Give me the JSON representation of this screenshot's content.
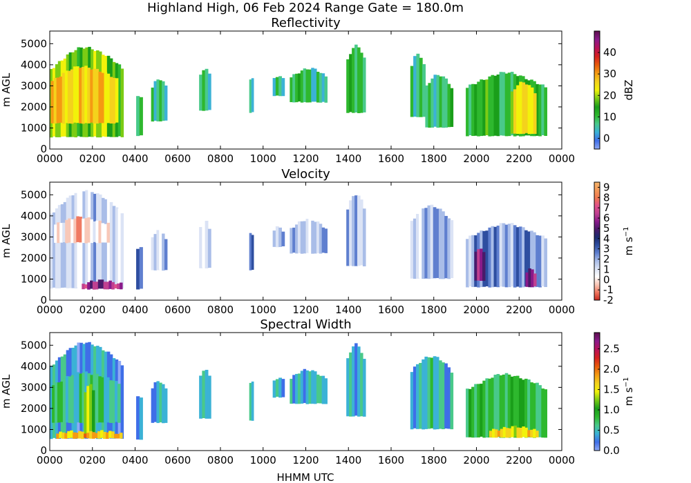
{
  "figure": {
    "title": "Highland High, 06 Feb 2024 Range Gate = 180.0m",
    "xlabel": "HHMM UTC",
    "xticks": [
      "0000",
      "0200",
      "0400",
      "0600",
      "0800",
      "1000",
      "1200",
      "1400",
      "1600",
      "1800",
      "2000",
      "2200",
      "0000"
    ]
  },
  "chart_data": [
    {
      "type": "heatmap",
      "title": "Reflectivity",
      "ylabel": "m AGL",
      "xlim_hours": [
        0,
        24
      ],
      "ylim": [
        0,
        5600
      ],
      "yticks": [
        0,
        1000,
        2000,
        3000,
        4000,
        5000
      ],
      "colorbar": {
        "label": "dBZ",
        "range": [
          -5,
          50
        ],
        "ticks": [
          "0",
          "10",
          "20",
          "30",
          "40"
        ],
        "tick_values": [
          0,
          10,
          20,
          30,
          40
        ],
        "colors": [
          "#8fa9f5",
          "#3f6ee8",
          "#3bb2d6",
          "#49c98a",
          "#2eb82e",
          "#1a9e1a",
          "#7ccc14",
          "#f2f20a",
          "#f4d21c",
          "#f59a12",
          "#e85a0c",
          "#d62020",
          "#b8125a",
          "#8a1a8a",
          "#5c0f4d"
        ]
      },
      "echoes": [
        {
          "x0": 0.0,
          "x1": 3.45,
          "y0": 550,
          "y1": 4800,
          "level": 0.42
        },
        {
          "x0": 0.05,
          "x1": 3.2,
          "y0": 1200,
          "y1": 3900,
          "level": 0.58
        },
        {
          "x0": 4.05,
          "x1": 4.35,
          "y0": 600,
          "y1": 2700,
          "level": 0.2
        },
        {
          "x0": 4.75,
          "x1": 5.5,
          "y0": 1300,
          "y1": 3300,
          "level": 0.25
        },
        {
          "x0": 7.0,
          "x1": 7.55,
          "y0": 1800,
          "y1": 3800,
          "level": 0.27
        },
        {
          "x0": 9.35,
          "x1": 9.55,
          "y0": 1700,
          "y1": 3400,
          "level": 0.25
        },
        {
          "x0": 10.45,
          "x1": 11.0,
          "y0": 2500,
          "y1": 3500,
          "level": 0.2
        },
        {
          "x0": 11.25,
          "x1": 13.0,
          "y0": 2200,
          "y1": 3800,
          "level": 0.24
        },
        {
          "x0": 13.9,
          "x1": 14.8,
          "y0": 1700,
          "y1": 4900,
          "level": 0.28
        },
        {
          "x0": 16.9,
          "x1": 17.6,
          "y0": 1500,
          "y1": 4500,
          "level": 0.24
        },
        {
          "x0": 17.6,
          "x1": 18.9,
          "y0": 1000,
          "y1": 3500,
          "level": 0.24
        },
        {
          "x0": 19.5,
          "x1": 23.3,
          "y0": 600,
          "y1": 3600,
          "level": 0.3
        },
        {
          "x0": 21.6,
          "x1": 22.8,
          "y0": 700,
          "y1": 3200,
          "level": 0.5
        }
      ]
    },
    {
      "type": "heatmap",
      "title": "Velocity",
      "ylabel": "m AGL",
      "xlim_hours": [
        0,
        24
      ],
      "ylim": [
        0,
        5600
      ],
      "yticks": [
        0,
        1000,
        2000,
        3000,
        4000,
        5000
      ],
      "colorbar": {
        "label": "m s",
        "label_sup": "−1",
        "range": [
          -2,
          9.5
        ],
        "ticks": [
          "-2",
          "-1",
          "0",
          "1",
          "2",
          "3",
          "4",
          "5",
          "6",
          "7",
          "8",
          "9"
        ],
        "tick_values": [
          -2,
          -1,
          0,
          1,
          2,
          3,
          4,
          5,
          6,
          7,
          8,
          9
        ],
        "colors": [
          "#c82820",
          "#f07a62",
          "#f8c8b8",
          "#ffffff",
          "#dbe3f5",
          "#a9bde8",
          "#5f7fcf",
          "#2e4ea0",
          "#1a2a6e",
          "#4a1a6a",
          "#8a1a8a",
          "#c04090",
          "#e0508a",
          "#f07850",
          "#f49a5a",
          "#f5b46a"
        ]
      },
      "echoes": [
        {
          "x0": 0.0,
          "x1": 3.45,
          "y0": 550,
          "y1": 5200,
          "level": 0.28
        },
        {
          "x0": 0.2,
          "x1": 2.8,
          "y0": 2700,
          "y1": 3900,
          "level": 0.16
        },
        {
          "x0": 1.5,
          "x1": 3.4,
          "y0": 500,
          "y1": 900,
          "level": 0.7
        },
        {
          "x0": 4.05,
          "x1": 4.35,
          "y0": 500,
          "y1": 2600,
          "level": 0.45
        },
        {
          "x0": 4.75,
          "x1": 5.5,
          "y0": 1400,
          "y1": 3300,
          "level": 0.32
        },
        {
          "x0": 7.0,
          "x1": 7.55,
          "y0": 1500,
          "y1": 3800,
          "level": 0.3
        },
        {
          "x0": 9.35,
          "x1": 9.55,
          "y0": 1400,
          "y1": 3300,
          "level": 0.4
        },
        {
          "x0": 10.45,
          "x1": 11.0,
          "y0": 2500,
          "y1": 3500,
          "level": 0.3
        },
        {
          "x0": 11.25,
          "x1": 13.0,
          "y0": 2200,
          "y1": 3800,
          "level": 0.32
        },
        {
          "x0": 13.9,
          "x1": 14.8,
          "y0": 1600,
          "y1": 5000,
          "level": 0.34
        },
        {
          "x0": 16.9,
          "x1": 18.9,
          "y0": 1000,
          "y1": 4500,
          "level": 0.33
        },
        {
          "x0": 19.5,
          "x1": 23.3,
          "y0": 600,
          "y1": 3600,
          "level": 0.38
        },
        {
          "x0": 19.9,
          "x1": 20.4,
          "y0": 900,
          "y1": 2500,
          "level": 0.65
        },
        {
          "x0": 22.3,
          "x1": 22.8,
          "y0": 600,
          "y1": 1500,
          "level": 0.62
        }
      ]
    },
    {
      "type": "heatmap",
      "title": "Spectral Width",
      "ylabel": "m AGL",
      "xlim_hours": [
        0,
        24
      ],
      "ylim": [
        0,
        5600
      ],
      "yticks": [
        0,
        1000,
        2000,
        3000,
        4000,
        5000
      ],
      "colorbar": {
        "label": "m s",
        "label_sup": "−1",
        "range": [
          0,
          2.9
        ],
        "ticks": [
          "0.0",
          "0.5",
          "1.0",
          "1.5",
          "2.0",
          "2.5"
        ],
        "tick_values": [
          0,
          0.5,
          1.0,
          1.5,
          2.0,
          2.5
        ],
        "colors": [
          "#8fa9f5",
          "#3f6ee8",
          "#3bb2d6",
          "#49c98a",
          "#2eb82e",
          "#1a9e1a",
          "#7ccc14",
          "#f2f20a",
          "#f4d21c",
          "#f59a12",
          "#e85a0c",
          "#d62020",
          "#b8125a",
          "#8a1a8a",
          "#5c0f4d"
        ]
      },
      "echoes": [
        {
          "x0": 0.0,
          "x1": 3.45,
          "y0": 550,
          "y1": 5100,
          "level": 0.12
        },
        {
          "x0": 0.1,
          "x1": 3.3,
          "y0": 1300,
          "y1": 3700,
          "level": 0.22
        },
        {
          "x0": 1.6,
          "x1": 2.1,
          "y0": 600,
          "y1": 3200,
          "level": 0.4
        },
        {
          "x0": 0.3,
          "x1": 3.4,
          "y0": 550,
          "y1": 900,
          "level": 0.6
        },
        {
          "x0": 4.05,
          "x1": 4.35,
          "y0": 500,
          "y1": 2700,
          "level": 0.14
        },
        {
          "x0": 4.75,
          "x1": 5.5,
          "y0": 1300,
          "y1": 3300,
          "level": 0.13
        },
        {
          "x0": 7.0,
          "x1": 7.55,
          "y0": 1500,
          "y1": 3900,
          "level": 0.15
        },
        {
          "x0": 9.35,
          "x1": 9.55,
          "y0": 1400,
          "y1": 3400,
          "level": 0.14
        },
        {
          "x0": 10.45,
          "x1": 11.0,
          "y0": 2500,
          "y1": 3500,
          "level": 0.12
        },
        {
          "x0": 11.25,
          "x1": 13.0,
          "y0": 2200,
          "y1": 3800,
          "level": 0.16
        },
        {
          "x0": 13.9,
          "x1": 14.8,
          "y0": 1600,
          "y1": 5000,
          "level": 0.17
        },
        {
          "x0": 16.9,
          "x1": 18.9,
          "y0": 1000,
          "y1": 4500,
          "level": 0.16
        },
        {
          "x0": 19.5,
          "x1": 23.3,
          "y0": 600,
          "y1": 3600,
          "level": 0.28
        },
        {
          "x0": 20.6,
          "x1": 22.9,
          "y0": 600,
          "y1": 1100,
          "level": 0.55
        }
      ]
    }
  ]
}
